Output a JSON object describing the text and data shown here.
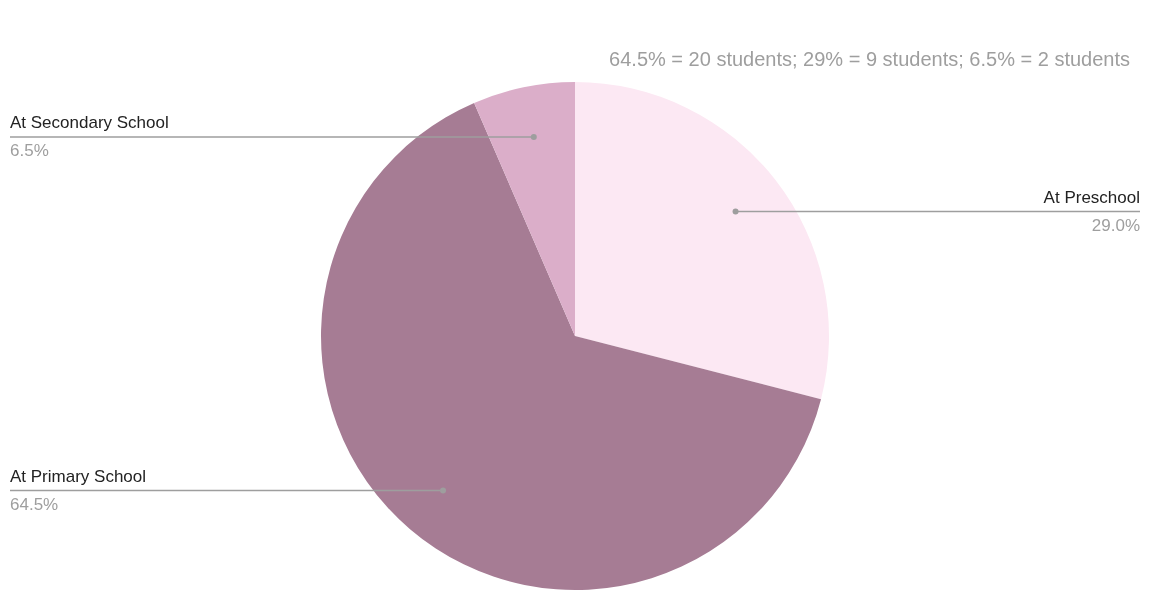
{
  "chart_data": {
    "type": "pie",
    "title": "64.5% = 20 students; 29% = 9 students; 6.5% = 2 students",
    "categories": [
      "At Preschool",
      "At Primary School",
      "At Secondary School"
    ],
    "values": [
      29.0,
      64.5,
      6.5
    ],
    "colors": [
      "#fce8f3",
      "#a67c94",
      "#dbaec9"
    ],
    "value_labels": [
      "29.0%",
      "64.5%",
      "6.5%"
    ],
    "legend": false
  }
}
